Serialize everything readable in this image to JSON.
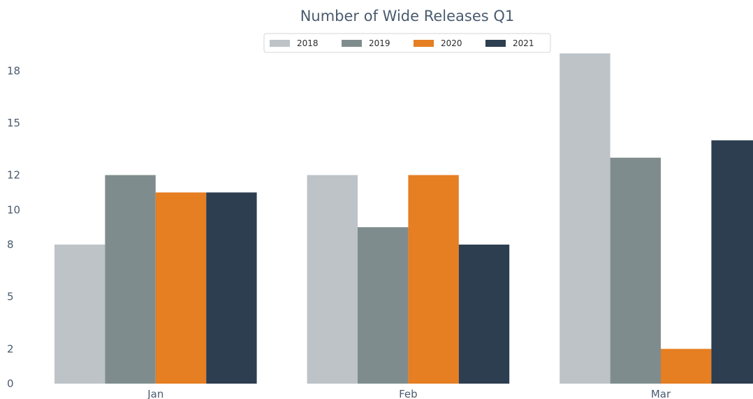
{
  "chart_data": {
    "type": "bar",
    "title": "Number of Wide Releases Q1",
    "xlabel": "",
    "ylabel": "",
    "categories": [
      "Jan",
      "Feb",
      "Mar"
    ],
    "series": [
      {
        "name": "2018",
        "color": "#bdc3c7",
        "values": [
          8,
          12,
          19
        ]
      },
      {
        "name": "2019",
        "color": "#7f8c8d",
        "values": [
          12,
          9,
          13
        ]
      },
      {
        "name": "2020",
        "color": "#e67e22",
        "values": [
          11,
          12,
          2
        ]
      },
      {
        "name": "2021",
        "color": "#2c3e50",
        "values": [
          11,
          8,
          14
        ]
      }
    ],
    "y_ticks": [
      0,
      2,
      5,
      8,
      10,
      12,
      15,
      18
    ],
    "y_tick_labels": [
      "0",
      "2",
      "5",
      "8",
      "10",
      "12",
      "15",
      "18"
    ],
    "ylim": [
      0,
      19.5
    ],
    "grid": false,
    "legend_position": "top-center"
  }
}
